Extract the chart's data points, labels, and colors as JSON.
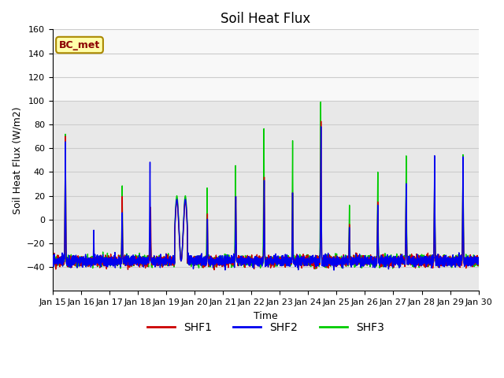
{
  "title": "Soil Heat Flux",
  "xlabel": "Time",
  "ylabel": "Soil Heat Flux (W/m2)",
  "ylim": [
    -60,
    160
  ],
  "yticks": [
    -40,
    -20,
    0,
    20,
    40,
    60,
    80,
    100,
    120,
    140,
    160
  ],
  "x_start_day": 15,
  "x_end_day": 30,
  "xtick_days": [
    15,
    16,
    17,
    18,
    19,
    20,
    21,
    22,
    23,
    24,
    25,
    26,
    27,
    28,
    29,
    30
  ],
  "color_shf1": "#cc0000",
  "color_shf2": "#0000ee",
  "color_shf3": "#00cc00",
  "legend_labels": [
    "SHF1",
    "SHF2",
    "SHF3"
  ],
  "annotation_text": "BC_met",
  "annotation_color": "#8b0000",
  "annotation_bg": "#ffffaa",
  "annotation_border": "#aa8800",
  "grid_color": "#cccccc",
  "plot_bg_lower": "#e8e8e8",
  "plot_bg_upper": "#f8f8f8",
  "shaded_split": 100,
  "linewidth": 1.0,
  "tick_fontsize": 8,
  "label_fontsize": 9,
  "title_fontsize": 12
}
